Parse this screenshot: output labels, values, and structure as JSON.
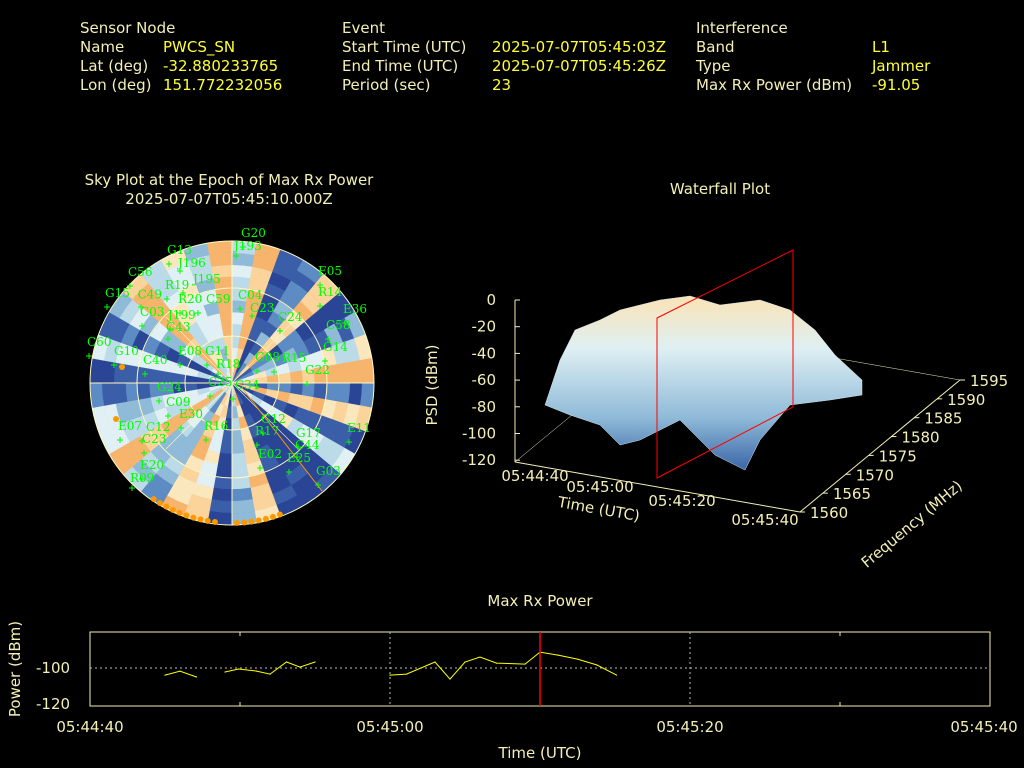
{
  "header": {
    "sensor": {
      "title": "Sensor Node",
      "name_label": "Name",
      "name": "PWCS_SN",
      "lat_label": "Lat (deg)",
      "lat": "-32.880233765",
      "lon_label": "Lon (deg)",
      "lon": "151.772232056"
    },
    "event": {
      "title": "Event",
      "start_label": "Start Time (UTC)",
      "start": "2025-07-07T05:45:03Z",
      "end_label": "End Time (UTC)",
      "end": "2025-07-07T05:45:26Z",
      "period_label": "Period (sec)",
      "period": "23"
    },
    "interference": {
      "title": "Interference",
      "band_label": "Band",
      "band": "L1",
      "type_label": "Type",
      "type": "Jammer",
      "power_label": "Max Rx Power (dBm)",
      "power": "-91.05"
    }
  },
  "skyplot": {
    "title": "Sky Plot at the Epoch of Max Rx Power",
    "subtitle": "2025-07-07T05:45:10.000Z",
    "satellites": [
      "G20",
      "J193",
      "G13",
      "J196",
      "C56",
      "E05",
      "R19",
      "J195",
      "G15",
      "C49",
      "R14",
      "R20",
      "C59",
      "C04",
      "C23",
      "E36",
      "C03",
      "J199",
      "C24",
      "C43",
      "C58",
      "C60",
      "G10",
      "C40",
      "E08",
      "G11",
      "R18",
      "G08",
      "R15",
      "G14",
      "G22",
      "C25",
      "C34",
      "G24",
      "C09",
      "E30",
      "R16",
      "E07",
      "C12",
      "C23",
      "G12",
      "R17",
      "G17",
      "C44",
      "E11",
      "E02",
      "E25",
      "G03",
      "E20",
      "R09"
    ]
  },
  "chart_data": [
    {
      "type": "surface",
      "title": "Waterfall Plot",
      "zlabel": "PSD (dBm)",
      "xlabel": "Time (UTC)",
      "ylabel": "Frequency (MHz)",
      "z_ticks": [
        "0",
        "-20",
        "-40",
        "-60",
        "-80",
        "-100",
        "-120"
      ],
      "x_ticks": [
        "05:44:40",
        "05:45:00",
        "05:45:20",
        "05:45:40"
      ],
      "y_ticks": [
        "1560",
        "1565",
        "1570",
        "1575",
        "1580",
        "1585",
        "1590",
        "1595"
      ],
      "zlim": [
        -120,
        0
      ],
      "marker_time": "05:45:10"
    },
    {
      "type": "line",
      "title": "Max Rx Power",
      "xlabel": "Time (UTC)",
      "ylabel": "Power (dBm)",
      "x_ticks": [
        "05:44:40",
        "05:45:00",
        "05:45:20",
        "05:45:40"
      ],
      "y_ticks": [
        "-100",
        "-120"
      ],
      "xlim_seconds": [
        0,
        60
      ],
      "ylim": [
        -120,
        -81
      ],
      "marker_seconds": 30,
      "series": [
        {
          "name": "seg1",
          "x": [
            5.0,
            6.0,
            7.1
          ],
          "y": [
            -103.7,
            -101.6,
            -104.7
          ]
        },
        {
          "name": "seg2",
          "x": [
            9.0,
            9.9,
            11.1,
            12.0,
            13.1,
            14.0,
            15.0
          ],
          "y": [
            -102.1,
            -100.5,
            -101.6,
            -103.2,
            -96.8,
            -99.5,
            -96.8
          ]
        },
        {
          "name": "seg3",
          "x": [
            20.0,
            21.1,
            23.0,
            24.0,
            25.0,
            26.0,
            27.1,
            29.0,
            30.0,
            31.2,
            32.5,
            33.8,
            35.1
          ],
          "y": [
            -103.7,
            -103.2,
            -96.8,
            -105.8,
            -96.8,
            -94.2,
            -97.4,
            -97.9,
            -91.6,
            -93.2,
            -95.3,
            -98.4,
            -103.7
          ]
        }
      ]
    }
  ],
  "colors": {
    "label": "#f4efb5",
    "value": "#ffff33",
    "sat": "#00ff00",
    "marker": "#ff0000",
    "line": "#ffff00"
  }
}
